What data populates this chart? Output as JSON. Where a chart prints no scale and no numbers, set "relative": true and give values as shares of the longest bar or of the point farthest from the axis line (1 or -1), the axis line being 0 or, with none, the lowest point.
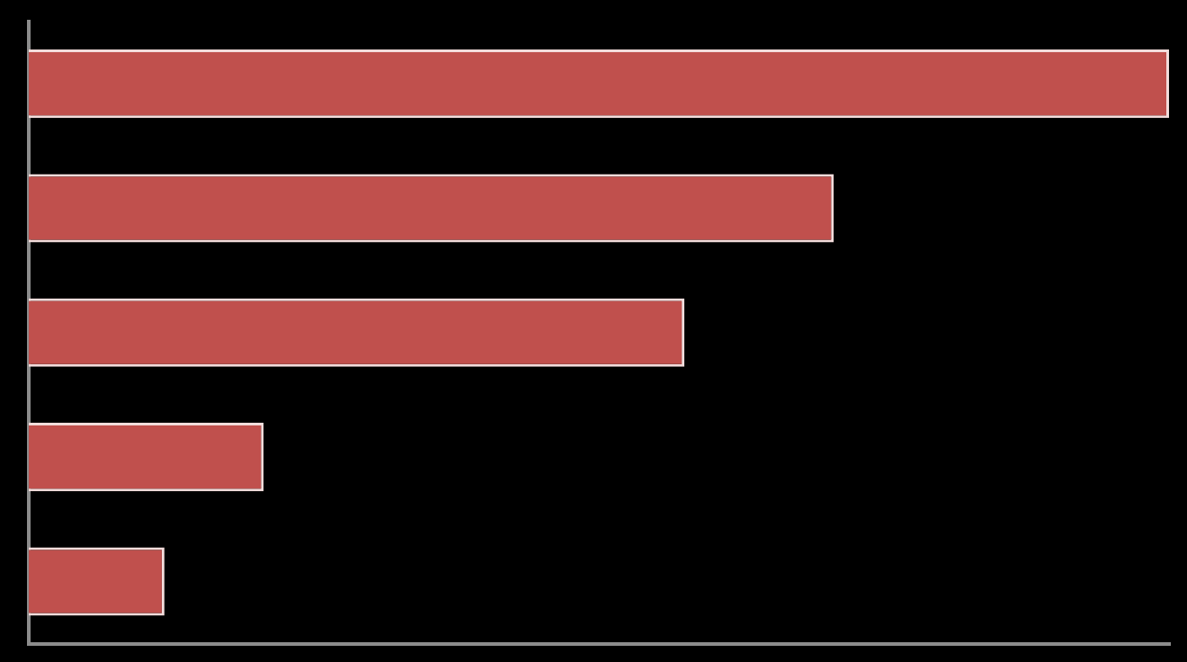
{
  "chart_data": {
    "type": "bar",
    "orientation": "horizontal",
    "relative": true,
    "categories": [
      null,
      null,
      null,
      null,
      null
    ],
    "values": [
      1,
      0.706,
      0.575,
      0.206,
      0.119
    ],
    "color": "#c0504d"
  }
}
